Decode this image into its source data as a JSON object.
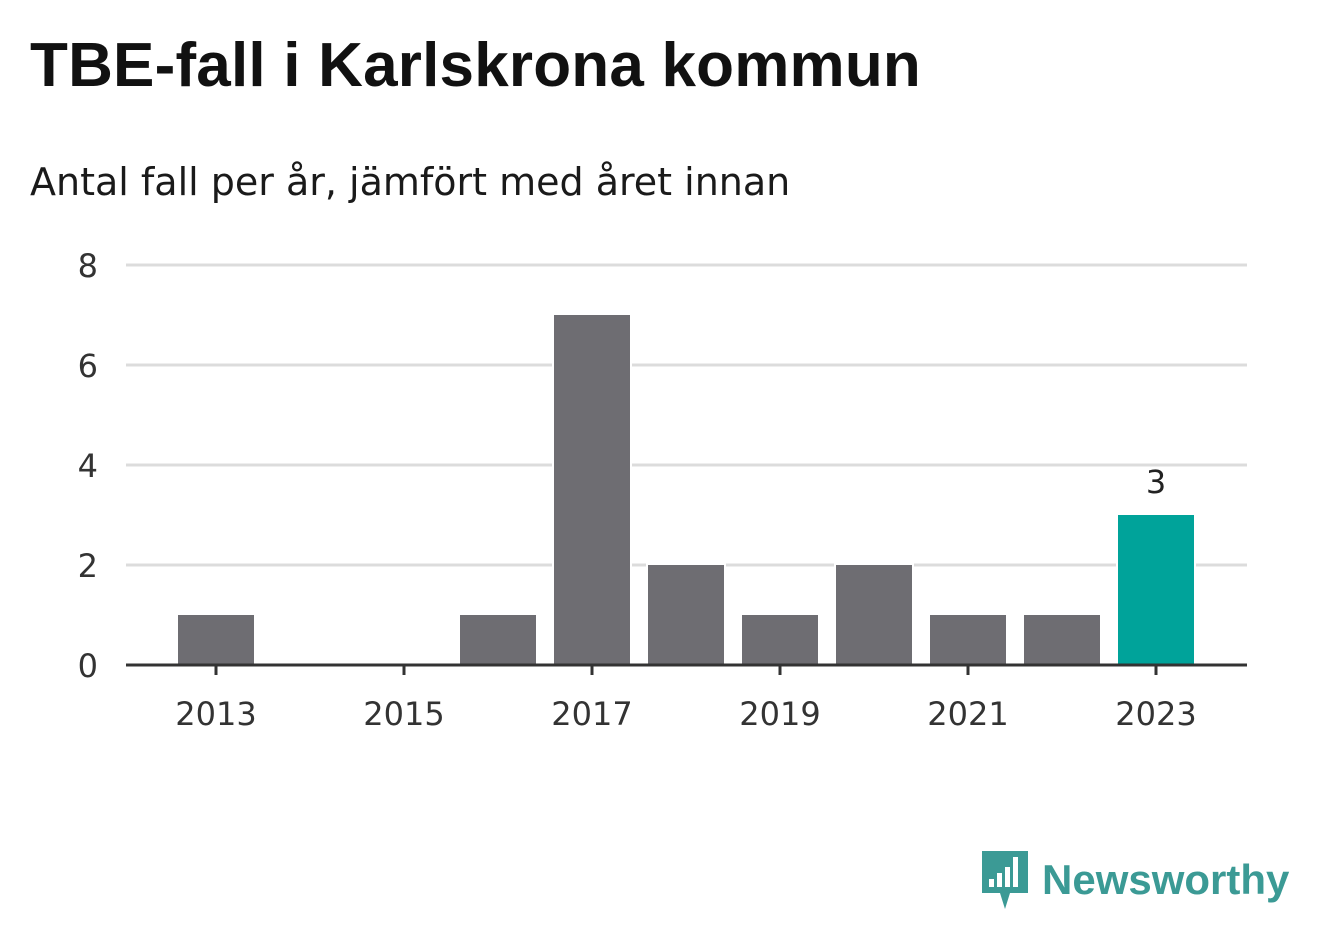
{
  "title": "TBE-fall i Karlskrona kommun",
  "subtitle": "Antal fall per år, jämfört med året innan",
  "brand": {
    "name": "Newsworthy",
    "icon": "newsworthy-logo-icon",
    "color": "#3b9a95"
  },
  "colors": {
    "bar": "#6e6d72",
    "highlight": "#00a39a",
    "grid": "#dcdcdc",
    "axis": "#333333"
  },
  "chart_data": {
    "type": "bar",
    "title": "TBE-fall i Karlskrona kommun",
    "subtitle": "Antal fall per år, jämfört med året innan",
    "categories": [
      "2013",
      "2014",
      "2015",
      "2016",
      "2017",
      "2018",
      "2019",
      "2020",
      "2021",
      "2022",
      "2023"
    ],
    "values": [
      1,
      0,
      0,
      1,
      7,
      2,
      1,
      2,
      1,
      1,
      3
    ],
    "highlight_category": "2023",
    "data_labels": [
      {
        "category": "2023",
        "text": "3"
      }
    ],
    "x_tick_labels": [
      "2013",
      "2015",
      "2017",
      "2019",
      "2021",
      "2023"
    ],
    "y_ticks": [
      0,
      2,
      4,
      6,
      8
    ],
    "ylim": [
      0,
      8
    ],
    "xlabel": "",
    "ylabel": "",
    "grid": true,
    "legend": "none"
  }
}
